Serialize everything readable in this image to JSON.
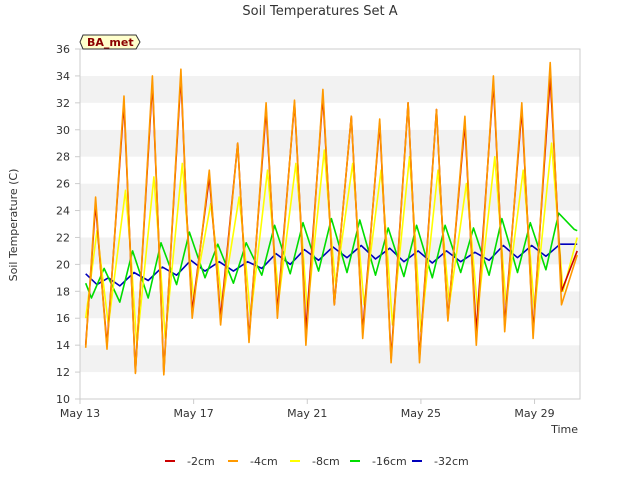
{
  "chart_data": {
    "type": "line",
    "title": "Soil Temperatures Set A",
    "xlabel": "Time",
    "ylabel": "Soil Temperature (C)",
    "badge": "BA_met",
    "xlim": [
      13,
      30.6
    ],
    "ylim": [
      10,
      36
    ],
    "x_ticks": [
      {
        "label": "May 13",
        "value": 13
      },
      {
        "label": "May 17",
        "value": 17
      },
      {
        "label": "May 21",
        "value": 21
      },
      {
        "label": "May 25",
        "value": 25
      },
      {
        "label": "May 29",
        "value": 29
      }
    ],
    "y_ticks": [
      10,
      12,
      14,
      16,
      18,
      20,
      22,
      24,
      26,
      28,
      30,
      32,
      34,
      36
    ],
    "grid": "horizontal bands",
    "legend_position": "bottom",
    "x_unit": "day of May (fractional)",
    "series": [
      {
        "name": "-2cm",
        "color": "#cc0000",
        "x": [
          13.2,
          13.55,
          13.75,
          13.95,
          14.55,
          14.75,
          14.95,
          15.55,
          15.75,
          15.95,
          16.55,
          16.75,
          16.95,
          17.55,
          17.75,
          17.95,
          18.55,
          18.75,
          18.95,
          19.55,
          19.75,
          19.95,
          20.55,
          20.75,
          20.95,
          21.55,
          21.75,
          21.95,
          22.55,
          22.75,
          22.95,
          23.55,
          23.75,
          23.95,
          24.55,
          24.75,
          24.95,
          25.55,
          25.75,
          25.95,
          26.55,
          26.75,
          26.95,
          27.55,
          27.75,
          27.95,
          28.55,
          28.75,
          28.95,
          29.55,
          29.75,
          29.95,
          30.5
        ],
        "y": [
          14.0,
          24.5,
          19.0,
          14.0,
          32.0,
          22.0,
          12.0,
          33.5,
          23.0,
          12.0,
          34.0,
          24.0,
          16.5,
          26.5,
          21.5,
          16.0,
          29.0,
          21.5,
          14.5,
          31.5,
          24.0,
          16.5,
          32.0,
          24.0,
          15.0,
          32.5,
          25.0,
          17.0,
          31.0,
          23.0,
          15.0,
          30.5,
          22.0,
          13.0,
          32.0,
          23.0,
          13.0,
          31.5,
          23.0,
          16.0,
          30.5,
          22.0,
          15.0,
          33.5,
          25.0,
          15.5,
          31.5,
          23.5,
          15.0,
          34.0,
          26.0,
          18.0,
          21.0
        ]
      },
      {
        "name": "-4cm",
        "color": "#ff9900",
        "x": [
          13.2,
          13.55,
          13.75,
          13.95,
          14.55,
          14.75,
          14.95,
          15.55,
          15.75,
          15.95,
          16.55,
          16.75,
          16.95,
          17.55,
          17.75,
          17.95,
          18.55,
          18.75,
          18.95,
          19.55,
          19.75,
          19.95,
          20.55,
          20.75,
          20.95,
          21.55,
          21.75,
          21.95,
          22.55,
          22.75,
          22.95,
          23.55,
          23.75,
          23.95,
          24.55,
          24.75,
          24.95,
          25.55,
          25.75,
          25.95,
          26.55,
          26.75,
          26.95,
          27.55,
          27.75,
          27.95,
          28.55,
          28.75,
          28.95,
          29.55,
          29.75,
          29.95,
          30.5
        ],
        "y": [
          13.8,
          25.0,
          19.0,
          13.7,
          32.5,
          22.0,
          11.9,
          34.0,
          23.0,
          11.8,
          34.5,
          24.0,
          16.0,
          27.0,
          21.5,
          15.5,
          29.0,
          21.5,
          14.2,
          32.0,
          24.0,
          16.0,
          32.2,
          24.0,
          14.0,
          33.0,
          25.0,
          17.0,
          31.0,
          23.0,
          14.5,
          30.8,
          22.0,
          12.7,
          32.0,
          23.0,
          12.7,
          31.5,
          23.0,
          15.8,
          31.0,
          22.0,
          14.0,
          34.0,
          25.0,
          15.0,
          32.0,
          23.5,
          14.5,
          35.0,
          26.0,
          17.0,
          20.7
        ]
      },
      {
        "name": "-8cm",
        "color": "#ffff00",
        "x": [
          13.2,
          13.6,
          13.8,
          14.0,
          14.6,
          14.8,
          15.0,
          15.6,
          15.8,
          16.0,
          16.6,
          16.8,
          17.0,
          17.6,
          17.8,
          18.0,
          18.6,
          18.8,
          19.0,
          19.6,
          19.8,
          20.0,
          20.6,
          20.8,
          21.0,
          21.6,
          21.8,
          22.0,
          22.6,
          22.8,
          23.0,
          23.6,
          23.8,
          24.0,
          24.6,
          24.8,
          25.0,
          25.6,
          25.8,
          26.0,
          26.6,
          26.8,
          27.0,
          27.6,
          27.8,
          28.0,
          28.6,
          28.8,
          29.0,
          29.6,
          29.8,
          30.0,
          30.5
        ],
        "y": [
          16.0,
          22.5,
          19.0,
          15.5,
          25.5,
          20.5,
          14.0,
          26.5,
          21.0,
          14.5,
          27.5,
          22.0,
          17.5,
          24.5,
          21.0,
          17.0,
          25.0,
          21.0,
          16.0,
          27.0,
          22.0,
          17.5,
          27.5,
          22.5,
          16.5,
          28.5,
          23.0,
          18.5,
          27.5,
          22.0,
          17.0,
          27.0,
          21.5,
          15.5,
          28.0,
          22.0,
          15.0,
          27.0,
          22.0,
          17.0,
          26.0,
          21.5,
          16.5,
          28.0,
          22.5,
          17.0,
          27.0,
          22.0,
          16.5,
          29.0,
          23.5,
          18.0,
          22.0
        ]
      },
      {
        "name": "-16cm",
        "color": "#00dd00",
        "x": [
          13.2,
          13.4,
          13.85,
          14.4,
          14.85,
          15.4,
          15.85,
          16.4,
          16.85,
          17.4,
          17.85,
          18.4,
          18.85,
          19.4,
          19.85,
          20.4,
          20.85,
          21.4,
          21.85,
          22.4,
          22.85,
          23.4,
          23.85,
          24.4,
          24.85,
          25.4,
          25.85,
          26.4,
          26.85,
          27.4,
          27.85,
          28.4,
          28.85,
          29.4,
          29.85,
          30.4,
          30.5
        ],
        "y": [
          18.6,
          17.5,
          19.7,
          17.2,
          21.0,
          17.5,
          21.6,
          18.5,
          22.4,
          19.0,
          21.5,
          18.6,
          21.6,
          19.2,
          22.9,
          19.3,
          23.1,
          19.5,
          23.4,
          19.4,
          23.3,
          19.2,
          22.7,
          19.1,
          22.9,
          19.0,
          22.9,
          19.4,
          22.7,
          19.2,
          23.4,
          19.4,
          23.1,
          19.6,
          23.8,
          22.6,
          22.5
        ]
      },
      {
        "name": "-32cm",
        "color": "#0000bb",
        "x": [
          13.2,
          13.6,
          14.0,
          14.4,
          14.9,
          15.4,
          15.9,
          16.4,
          16.9,
          17.4,
          17.9,
          18.4,
          18.9,
          19.4,
          19.9,
          20.4,
          20.9,
          21.4,
          21.9,
          22.4,
          22.9,
          23.4,
          23.9,
          24.4,
          24.9,
          25.4,
          25.9,
          26.4,
          26.9,
          27.4,
          27.9,
          28.4,
          28.9,
          29.4,
          29.9,
          30.4,
          30.5
        ],
        "y": [
          19.3,
          18.5,
          19.0,
          18.4,
          19.4,
          18.8,
          19.8,
          19.2,
          20.3,
          19.5,
          20.2,
          19.5,
          20.2,
          19.7,
          20.8,
          20.0,
          21.1,
          20.3,
          21.3,
          20.5,
          21.4,
          20.4,
          21.2,
          20.2,
          21.0,
          20.1,
          21.0,
          20.2,
          20.9,
          20.3,
          21.4,
          20.5,
          21.4,
          20.6,
          21.5,
          21.5,
          21.5
        ]
      }
    ]
  }
}
